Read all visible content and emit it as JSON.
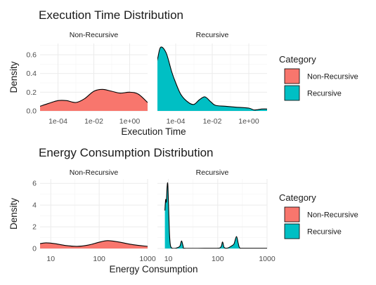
{
  "chart_data": [
    {
      "type": "area",
      "title": "Execution Time Distribution",
      "xlabel": "Execution Time",
      "ylabel": "Density",
      "x_scale": "log10",
      "xlim": [
        1e-05,
        10
      ],
      "ylim": [
        0,
        0.72
      ],
      "x_ticks": [
        0.0001,
        0.01,
        1
      ],
      "x_tick_labels": [
        "1e-04",
        "1e-02",
        "1e+00"
      ],
      "y_ticks": [
        0,
        0.2,
        0.4,
        0.6
      ],
      "y_tick_labels": [
        "0.0",
        "0.2",
        "0.4",
        "0.6"
      ],
      "grid": true,
      "legend": {
        "title": "Category",
        "position": "right",
        "entries": [
          "Non-Recursive",
          "Recursive"
        ]
      },
      "panels": [
        {
          "label": "Non-Recursive",
          "color": "#F8766D",
          "points": [
            [
              1e-05,
              0.05
            ],
            [
              3e-05,
              0.08
            ],
            [
              0.0001,
              0.11
            ],
            [
              0.0003,
              0.11
            ],
            [
              0.001,
              0.09
            ],
            [
              0.003,
              0.13
            ],
            [
              0.01,
              0.21
            ],
            [
              0.03,
              0.23
            ],
            [
              0.1,
              0.21
            ],
            [
              0.3,
              0.19
            ],
            [
              1,
              0.2
            ],
            [
              3,
              0.18
            ],
            [
              10,
              0.09
            ]
          ]
        },
        {
          "label": "Recursive",
          "color": "#00BFC4",
          "points": [
            [
              5e-06,
              0.31
            ],
            [
              1e-05,
              0.55
            ],
            [
              1.5e-05,
              0.68
            ],
            [
              3e-05,
              0.62
            ],
            [
              6e-05,
              0.42
            ],
            [
              0.0001,
              0.3
            ],
            [
              0.0002,
              0.17
            ],
            [
              0.0005,
              0.09
            ],
            [
              0.001,
              0.07
            ],
            [
              0.002,
              0.12
            ],
            [
              0.004,
              0.15
            ],
            [
              0.008,
              0.1
            ],
            [
              0.015,
              0.06
            ],
            [
              0.05,
              0.05
            ],
            [
              0.2,
              0.04
            ],
            [
              1,
              0.03
            ],
            [
              2,
              0.01
            ],
            [
              5,
              0.02
            ],
            [
              10,
              0.02
            ],
            [
              20,
              0.005
            ]
          ]
        }
      ]
    },
    {
      "type": "area",
      "title": "Energy Consumption Distribution",
      "xlabel": "Energy Consumption",
      "ylabel": "Density",
      "x_scale": "log10",
      "xlim": [
        6,
        1000
      ],
      "ylim": [
        0,
        6.4
      ],
      "x_ticks": [
        10,
        100,
        1000
      ],
      "x_tick_labels": [
        "10",
        "100",
        "1000"
      ],
      "y_ticks": [
        0,
        2,
        4,
        6
      ],
      "y_tick_labels": [
        "0",
        "2",
        "4",
        "6"
      ],
      "grid": true,
      "legend": {
        "title": "Category",
        "position": "right",
        "entries": [
          "Non-Recursive",
          "Recursive"
        ]
      },
      "panels": [
        {
          "label": "Non-Recursive",
          "color": "#F8766D",
          "points": [
            [
              6,
              0.45
            ],
            [
              8,
              0.52
            ],
            [
              12,
              0.45
            ],
            [
              20,
              0.28
            ],
            [
              35,
              0.2
            ],
            [
              60,
              0.32
            ],
            [
              100,
              0.58
            ],
            [
              150,
              0.72
            ],
            [
              250,
              0.6
            ],
            [
              500,
              0.35
            ],
            [
              1000,
              0.2
            ]
          ]
        },
        {
          "label": "Recursive",
          "color": "#00BFC4",
          "points": [
            [
              8.5,
              3.5
            ],
            [
              8.8,
              4.5
            ],
            [
              9.1,
              4.3
            ],
            [
              9.4,
              5.6
            ],
            [
              9.7,
              6
            ],
            [
              10,
              4.5
            ],
            [
              10.5,
              1.5
            ],
            [
              11,
              0.3
            ],
            [
              12,
              0.02
            ],
            [
              14,
              0.02
            ],
            [
              17,
              0.2
            ],
            [
              18.5,
              0.7
            ],
            [
              20,
              0.2
            ],
            [
              22,
              0.02
            ],
            [
              60,
              0.02
            ],
            [
              110,
              0.05
            ],
            [
              125,
              0.6
            ],
            [
              135,
              0.1
            ],
            [
              160,
              0.05
            ],
            [
              200,
              0.3
            ],
            [
              215,
              0.45
            ],
            [
              240,
              1.1
            ],
            [
              260,
              0.5
            ],
            [
              280,
              0.05
            ],
            [
              350,
              0.02
            ],
            [
              1000,
              0.02
            ]
          ]
        }
      ]
    }
  ]
}
